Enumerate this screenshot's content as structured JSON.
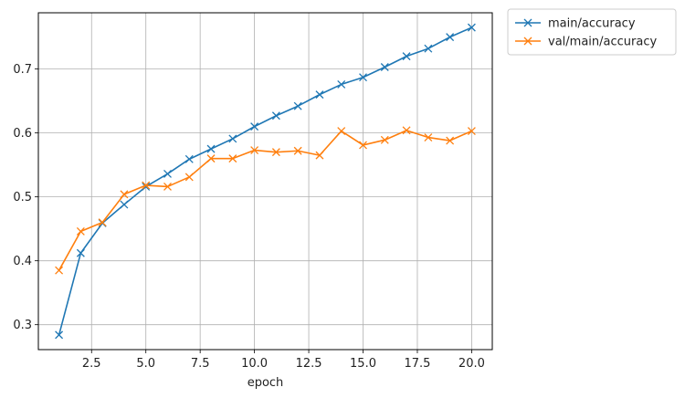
{
  "chart_data": {
    "type": "line",
    "title": "",
    "xlabel": "epoch",
    "ylabel": "",
    "xlim": [
      0.05,
      20.95
    ],
    "ylim": [
      0.261,
      0.788
    ],
    "x_ticks": [
      2.5,
      5.0,
      7.5,
      10.0,
      12.5,
      15.0,
      17.5,
      20.0
    ],
    "x_tick_labels": [
      "2.5",
      "5.0",
      "7.5",
      "10.0",
      "12.5",
      "15.0",
      "17.5",
      "20.0"
    ],
    "y_ticks": [
      0.3,
      0.4,
      0.5,
      0.6,
      0.7
    ],
    "y_tick_labels": [
      "0.3",
      "0.4",
      "0.5",
      "0.6",
      "0.7"
    ],
    "grid": true,
    "legend_position": "outside-top-right",
    "marker": "x",
    "x": [
      1,
      2,
      3,
      4,
      5,
      6,
      7,
      8,
      9,
      10,
      11,
      12,
      13,
      14,
      15,
      16,
      17,
      18,
      19,
      20
    ],
    "series": [
      {
        "name": "main/accuracy",
        "color": "#1f77b4",
        "values": [
          0.284,
          0.412,
          0.459,
          0.488,
          0.516,
          0.536,
          0.559,
          0.575,
          0.591,
          0.61,
          0.627,
          0.642,
          0.66,
          0.676,
          0.687,
          0.703,
          0.72,
          0.732,
          0.75,
          0.765
        ]
      },
      {
        "name": "val/main/accuracy",
        "color": "#ff7f0e",
        "values": [
          0.385,
          0.446,
          0.46,
          0.504,
          0.518,
          0.516,
          0.531,
          0.56,
          0.56,
          0.573,
          0.57,
          0.572,
          0.565,
          0.603,
          0.581,
          0.589,
          0.604,
          0.593,
          0.588,
          0.603
        ]
      }
    ]
  }
}
